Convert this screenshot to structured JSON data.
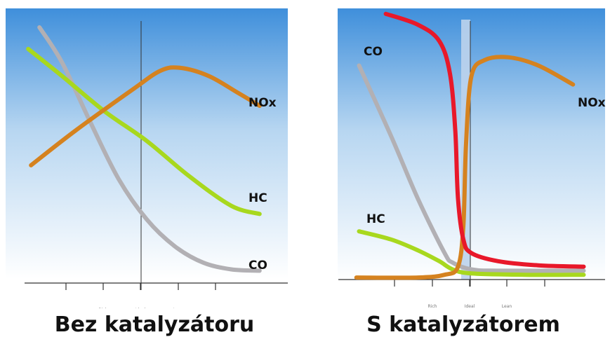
{
  "chart_data": [
    {
      "type": "line",
      "title": "Bez katalyzátoru",
      "xlabel": "",
      "ylabel": "",
      "x_tick_labels": [
        "Rich",
        "Ideal",
        "Lean"
      ],
      "series": [
        {
          "name": "CO",
          "color": "#b2b0b4",
          "points": [
            [
              0.12,
              0.93
            ],
            [
              0.2,
              0.8
            ],
            [
              0.3,
              0.58
            ],
            [
              0.4,
              0.37
            ],
            [
              0.5,
              0.22
            ],
            [
              0.6,
              0.12
            ],
            [
              0.7,
              0.06
            ],
            [
              0.8,
              0.035
            ],
            [
              0.9,
              0.03
            ]
          ]
        },
        {
          "name": "HC",
          "color": "#a8d81e",
          "points": [
            [
              0.08,
              0.85
            ],
            [
              0.2,
              0.75
            ],
            [
              0.35,
              0.62
            ],
            [
              0.5,
              0.51
            ],
            [
              0.65,
              0.38
            ],
            [
              0.8,
              0.27
            ],
            [
              0.9,
              0.24
            ]
          ]
        },
        {
          "name": "NOx",
          "color": "#d5821f",
          "points": [
            [
              0.09,
              0.42
            ],
            [
              0.25,
              0.55
            ],
            [
              0.45,
              0.7
            ],
            [
              0.55,
              0.77
            ],
            [
              0.62,
              0.78
            ],
            [
              0.72,
              0.75
            ],
            [
              0.82,
              0.69
            ],
            [
              0.9,
              0.64
            ]
          ]
        }
      ]
    },
    {
      "type": "line",
      "title": "S katalyzátorem",
      "xlabel": "",
      "ylabel": "",
      "x_tick_labels": [
        "Rich",
        "Ideal",
        "Lean"
      ],
      "series": [
        {
          "name": "CO",
          "color": "#b2b0b4",
          "points": [
            [
              0.08,
              0.79
            ],
            [
              0.2,
              0.53
            ],
            [
              0.3,
              0.3
            ],
            [
              0.4,
              0.1
            ],
            [
              0.43,
              0.065
            ],
            [
              0.5,
              0.04
            ],
            [
              0.6,
              0.035
            ],
            [
              0.92,
              0.035
            ]
          ]
        },
        {
          "name": "HC",
          "color": "#a8d81e",
          "points": [
            [
              0.08,
              0.18
            ],
            [
              0.2,
              0.15
            ],
            [
              0.3,
              0.11
            ],
            [
              0.38,
              0.07
            ],
            [
              0.43,
              0.04
            ],
            [
              0.5,
              0.025
            ],
            [
              0.7,
              0.02
            ],
            [
              0.92,
              0.02
            ]
          ]
        },
        {
          "name": "NOx",
          "color": "#d5821f",
          "points": [
            [
              0.07,
              0.01
            ],
            [
              0.3,
              0.01
            ],
            [
              0.4,
              0.02
            ],
            [
              0.45,
              0.05
            ],
            [
              0.47,
              0.2
            ],
            [
              0.48,
              0.5
            ],
            [
              0.5,
              0.75
            ],
            [
              0.55,
              0.81
            ],
            [
              0.64,
              0.82
            ],
            [
              0.75,
              0.79
            ],
            [
              0.88,
              0.72
            ]
          ]
        },
        {
          "name": "",
          "color": "#e8182a",
          "points": [
            [
              0.18,
              0.98
            ],
            [
              0.3,
              0.94
            ],
            [
              0.38,
              0.88
            ],
            [
              0.42,
              0.76
            ],
            [
              0.44,
              0.55
            ],
            [
              0.45,
              0.3
            ],
            [
              0.47,
              0.15
            ],
            [
              0.5,
              0.1
            ],
            [
              0.6,
              0.07
            ],
            [
              0.75,
              0.055
            ],
            [
              0.92,
              0.05
            ]
          ]
        }
      ]
    }
  ]
}
